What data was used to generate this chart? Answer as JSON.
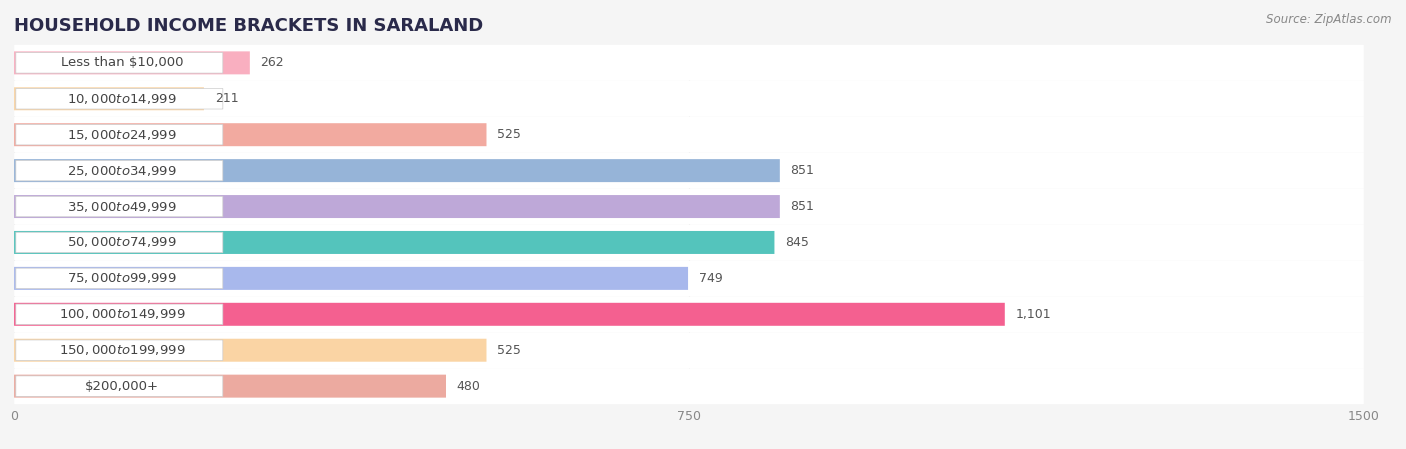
{
  "title": "HOUSEHOLD INCOME BRACKETS IN SARALAND",
  "source": "Source: ZipAtlas.com",
  "categories": [
    "Less than $10,000",
    "$10,000 to $14,999",
    "$15,000 to $24,999",
    "$25,000 to $34,999",
    "$35,000 to $49,999",
    "$50,000 to $74,999",
    "$75,000 to $99,999",
    "$100,000 to $149,999",
    "$150,000 to $199,999",
    "$200,000+"
  ],
  "values": [
    262,
    211,
    525,
    851,
    851,
    845,
    749,
    1101,
    525,
    480
  ],
  "bar_colors": [
    "#f9afc0",
    "#fad4a4",
    "#f2aaa0",
    "#96b4d8",
    "#bea8d8",
    "#54c4bc",
    "#a8b8ec",
    "#f46090",
    "#fad4a4",
    "#ecaaa0"
  ],
  "row_bg_color": "#efefef",
  "xlim": [
    0,
    1500
  ],
  "xticks": [
    0,
    750,
    1500
  ],
  "background_color": "#f5f5f5",
  "bar_background_color": "#ffffff",
  "label_color": "#444444",
  "value_label_color": "#555555",
  "title_color": "#2a2a4a",
  "bar_height": 0.62,
  "bar_label_fontsize": 9.5,
  "value_fontsize": 9,
  "title_fontsize": 13,
  "source_fontsize": 8.5
}
